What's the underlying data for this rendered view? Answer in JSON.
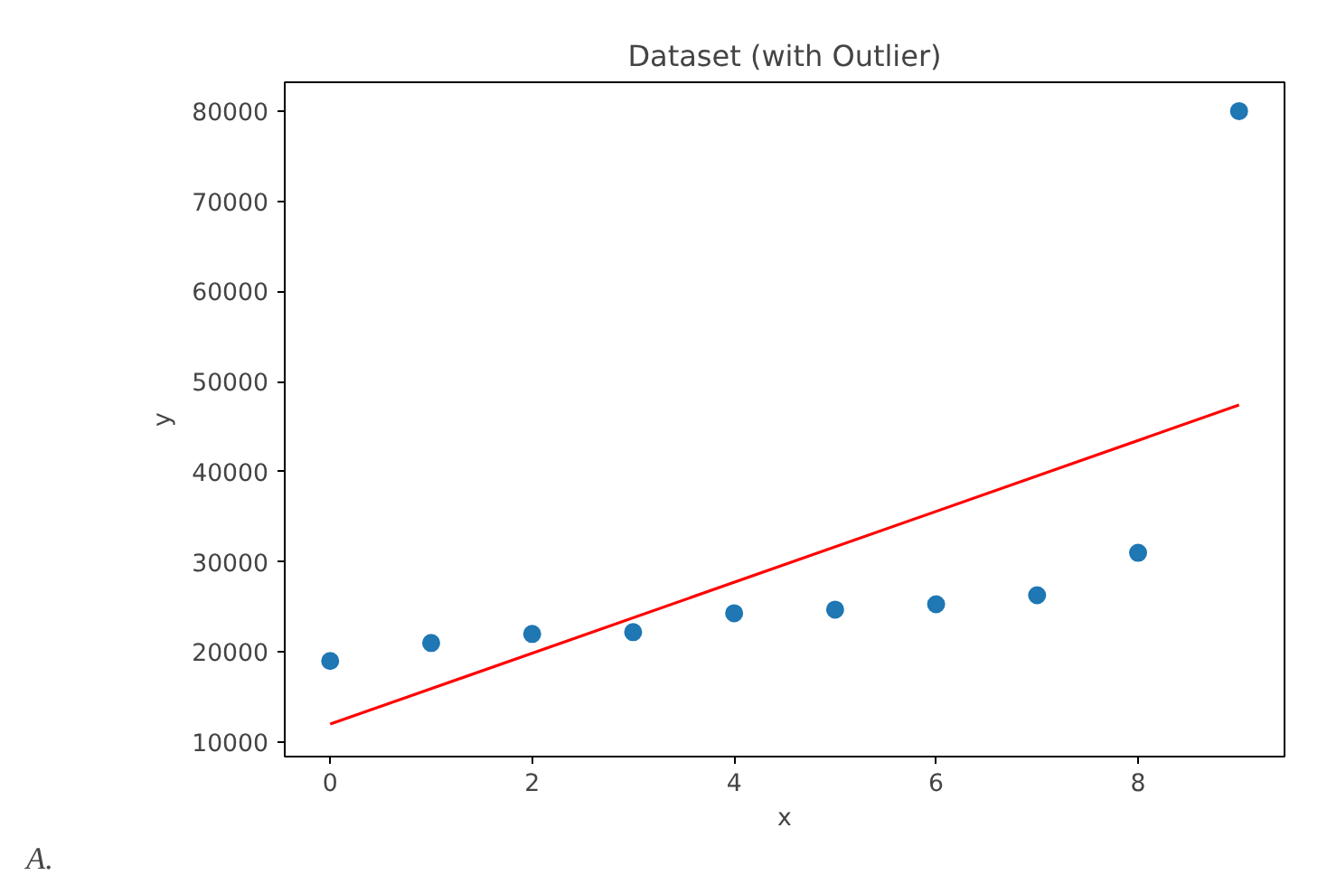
{
  "chart_data": {
    "type": "scatter",
    "title": "Dataset (with Outlier)",
    "xlabel": "x",
    "ylabel": "y",
    "x": [
      0,
      1,
      2,
      3,
      4,
      5,
      6,
      7,
      8,
      9
    ],
    "series": [
      {
        "color": "#1f77b4",
        "marker": "circle",
        "values": [
          19000,
          21000,
          22000,
          22200,
          24300,
          24700,
          25300,
          26300,
          31000,
          80000
        ]
      },
      {
        "type": "line",
        "color": "#ff0000",
        "marker": "none",
        "x": [
          0,
          9
        ],
        "values": [
          12000,
          47400
        ]
      }
    ],
    "xlim": [
      -0.45,
      9.45
    ],
    "ylim": [
      8400,
      83200
    ],
    "xticks": [
      0,
      2,
      4,
      6,
      8
    ],
    "yticks": [
      10000,
      20000,
      30000,
      40000,
      50000,
      60000,
      70000,
      80000
    ],
    "grid": false,
    "annotations": [
      "A."
    ]
  }
}
